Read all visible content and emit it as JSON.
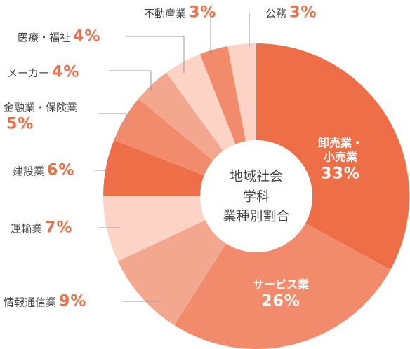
{
  "chart_data": {
    "type": "donut",
    "title": "地域社会\n学科\n業種別割合",
    "categories": [
      "卸売業・\n小売業",
      "サービス業",
      "情報通信業",
      "運輸業",
      "建設業",
      "金融業・保険業",
      "メーカー",
      "医療・福祉",
      "不動産業",
      "公務"
    ],
    "values": [
      33,
      26,
      9,
      7,
      6,
      5,
      4,
      4,
      3,
      3
    ],
    "value_labels": [
      "33%",
      "26%",
      "9%",
      "7%",
      "6%",
      "5%",
      "4%",
      "4%",
      "3%",
      "3%"
    ],
    "colors": [
      "#ee6e47",
      "#f18b6b",
      "#f4a78f",
      "#fcd3c5",
      "#ee6e47",
      "#f18b6b",
      "#f4a78f",
      "#fcd3c5",
      "#f18b6b",
      "#fcd3c5"
    ]
  }
}
